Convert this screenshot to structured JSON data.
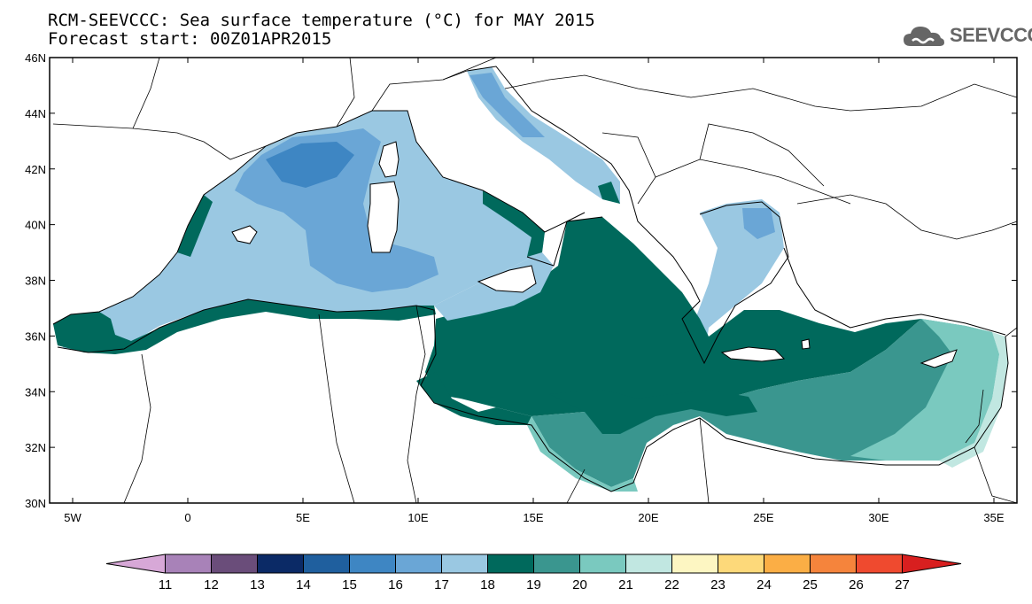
{
  "header": {
    "title": "RCM-SEEVCCC: Sea surface temperature (°C) for MAY 2015",
    "subtitle": "Forecast start: 00Z01APR2015"
  },
  "logo": {
    "text": "SEEVCCC",
    "icon": "cloud-icon",
    "color": "#666666"
  },
  "map": {
    "lon_range": [
      -6,
      36
    ],
    "lat_range": [
      30,
      46
    ],
    "x_ticks": [
      "5W",
      "0",
      "5E",
      "10E",
      "15E",
      "20E",
      "25E",
      "30E",
      "35E"
    ],
    "x_tick_values": [
      -5,
      0,
      5,
      10,
      15,
      20,
      25,
      30,
      35
    ],
    "y_ticks": [
      "30N",
      "32N",
      "34N",
      "36N",
      "38N",
      "40N",
      "42N",
      "44N",
      "46N"
    ],
    "y_tick_values": [
      30,
      32,
      34,
      36,
      38,
      40,
      42,
      44,
      46
    ]
  },
  "colorbar": {
    "labels": [
      "11",
      "12",
      "13",
      "14",
      "15",
      "16",
      "17",
      "18",
      "19",
      "20",
      "21",
      "22",
      "23",
      "24",
      "25",
      "26",
      "27"
    ],
    "colors": [
      "#d7a8d7",
      "#a882b8",
      "#6a4d7a",
      "#0b2a66",
      "#1f5f9e",
      "#3e86c3",
      "#6aa6d6",
      "#9ac8e2",
      "#00695c",
      "#3a968f",
      "#7ac9bf",
      "#c1e7e1",
      "#fdf6c2",
      "#fdd97a",
      "#fbae45",
      "#f5843c",
      "#ef4a2f",
      "#d81f1f"
    ]
  }
}
